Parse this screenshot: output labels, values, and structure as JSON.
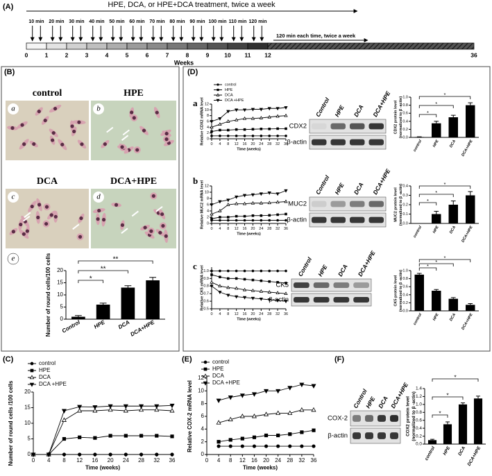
{
  "panel_a": {
    "label": "(A)",
    "treatment": "HPE, DCA, or HPE+DCA treatment, twice a week",
    "durations": [
      "10 min",
      "20 min",
      "30 min",
      "40 min",
      "50 min",
      "60 min",
      "70 min",
      "80 min",
      "90 min",
      "100 min",
      "110 min",
      "120 min"
    ],
    "tail": "120 min each time, twice a week",
    "weeks": [
      0,
      1,
      2,
      3,
      4,
      5,
      6,
      7,
      8,
      9,
      10,
      11,
      12,
      36
    ],
    "axis_label": "Weeks"
  },
  "panel_b": {
    "label": "(B)",
    "images": [
      {
        "letter": "a",
        "title": "control"
      },
      {
        "letter": "b",
        "title": "HPE"
      },
      {
        "letter": "c",
        "title": "DCA"
      },
      {
        "letter": "d",
        "title": "DCA+HPE"
      }
    ],
    "chart_letter": "e"
  },
  "panel_c": {
    "label": "(C)"
  },
  "panel_d": {
    "label": "(D)",
    "rows": [
      {
        "letter": "a",
        "blot": {
          "lanes": [
            "Control",
            "HPE",
            "DCA",
            "DCA+HPE"
          ],
          "proteins": [
            "CDX2",
            "β-actin"
          ]
        }
      },
      {
        "letter": "b",
        "blot": {
          "lanes": [
            "Control",
            "HPE",
            "DCA",
            "DCA+HPE"
          ],
          "proteins": [
            "MUC2",
            "β-actin"
          ]
        }
      },
      {
        "letter": "c",
        "blot": {
          "lanes": [
            "Control",
            "HPE",
            "DCA",
            "DCA+HPE"
          ],
          "proteins": [
            "CK5",
            "β-actin"
          ]
        }
      }
    ]
  },
  "panel_e": {
    "label": "(E)"
  },
  "panel_f": {
    "label": "(F)",
    "blot": {
      "lanes": [
        "Control",
        "HPE",
        "DCA",
        "DCA+HPE"
      ],
      "proteins": [
        "COX-2",
        "β-actin"
      ]
    }
  },
  "chart_data": [
    {
      "type": "bar",
      "ylabel": "Number of round cells/100 cells",
      "categories": [
        "Control",
        "HPE",
        "DCA",
        "DCA+HPE"
      ],
      "values": [
        1,
        6,
        13,
        16
      ],
      "errors": [
        0.5,
        0.6,
        0.8,
        1.2
      ],
      "color": "#000000",
      "ylim": [
        0,
        20
      ],
      "yticks": [
        0,
        5,
        10,
        15,
        20
      ],
      "significance": [
        {
          "pair": [
            "Control",
            "HPE"
          ],
          "label": "*"
        },
        {
          "pair": [
            "Control",
            "DCA"
          ],
          "label": "**"
        },
        {
          "pair": [
            "Control",
            "DCA+HPE"
          ],
          "label": "**"
        }
      ]
    },
    {
      "type": "line",
      "xlabel": "Time (weeks)",
      "ylabel": "Number of round cells /100 cells",
      "x": [
        0,
        4,
        8,
        12,
        16,
        20,
        24,
        28,
        32,
        36
      ],
      "xlim": [
        0,
        36
      ],
      "xticks": [
        0,
        4,
        8,
        12,
        16,
        20,
        24,
        28,
        32,
        36
      ],
      "ylim": [
        0,
        20
      ],
      "yticks": [
        0,
        5,
        10,
        15,
        20
      ],
      "series": [
        {
          "name": "control",
          "marker": "circle",
          "color": "#000000",
          "values": [
            0,
            0,
            0,
            0,
            0,
            0,
            0,
            0,
            0,
            0
          ]
        },
        {
          "name": "HPE",
          "marker": "square",
          "color": "#000000",
          "values": [
            0,
            0,
            5,
            5.5,
            5.3,
            6,
            6,
            6,
            6,
            5.8
          ]
        },
        {
          "name": "DCA",
          "marker": "triangle",
          "color": "#000000",
          "values": [
            0,
            0,
            11,
            14,
            14,
            14.3,
            14,
            14.3,
            14.3,
            14
          ]
        },
        {
          "name": "DCA +HPE",
          "marker": "triangle-down",
          "color": "#000000",
          "values": [
            0,
            0,
            14,
            15.3,
            15.2,
            15.5,
            15.5,
            15.5,
            15.5,
            15.7
          ]
        }
      ]
    },
    {
      "type": "line",
      "xlabel": "Time (weeks)",
      "ylabel": "Relative CDX2 mRNA level",
      "x": [
        0,
        4,
        8,
        12,
        16,
        20,
        24,
        28,
        32,
        36
      ],
      "xlim": [
        0,
        36
      ],
      "xticks": [
        0,
        4,
        8,
        12,
        16,
        20,
        24,
        28,
        32,
        36
      ],
      "ylim": [
        0,
        12
      ],
      "yticks": [
        0,
        2,
        4,
        6,
        8,
        10,
        12
      ],
      "series": [
        {
          "name": "control",
          "marker": "circle",
          "color": "#000000",
          "values": [
            1,
            1,
            1,
            1,
            1,
            1,
            1,
            1,
            1,
            1
          ]
        },
        {
          "name": "HPE",
          "marker": "square",
          "color": "#000000",
          "values": [
            2.5,
            3,
            3,
            3.2,
            3.2,
            3.3,
            3.4,
            3.4,
            3.5,
            3.5
          ]
        },
        {
          "name": "DCA",
          "marker": "triangle",
          "color": "#000000",
          "values": [
            4,
            5,
            6,
            6.5,
            7,
            7,
            7.2,
            7.5,
            7.8,
            8
          ]
        },
        {
          "name": "DCA +HPE",
          "marker": "triangle-down",
          "color": "#000000",
          "values": [
            6,
            7,
            9.5,
            10,
            10,
            10.2,
            10.2,
            10.5,
            10.5,
            10.8
          ]
        }
      ]
    },
    {
      "type": "bar",
      "ylabel": [
        "CDX2 protein  level",
        "(normalized to β -actin)"
      ],
      "categories": [
        "control",
        "HPE",
        "DCA",
        "DCA+HPE"
      ],
      "values": [
        0.01,
        0.35,
        0.5,
        0.8
      ],
      "errors": [
        0.005,
        0.05,
        0.05,
        0.06
      ],
      "color": "#000000",
      "ylim": [
        0,
        1
      ],
      "yticks": [
        {
          "value": 0,
          "label": "0.0"
        },
        0.2,
        0.4,
        0.6,
        0.8,
        {
          "value": 1,
          "label": "1.0"
        }
      ],
      "significance": [
        {
          "pair": [
            "control",
            "HPE"
          ],
          "label": "*"
        },
        {
          "pair": [
            "control",
            "DCA"
          ],
          "label": "*"
        },
        {
          "pair": [
            "control",
            "DCA+HPE"
          ],
          "label": "*"
        }
      ]
    },
    {
      "type": "line",
      "xlabel": "Time (weeks)",
      "ylabel": "Relative MUC2 mRNA level",
      "x": [
        0,
        4,
        8,
        12,
        16,
        20,
        24,
        28,
        32,
        36
      ],
      "xlim": [
        0,
        36
      ],
      "xticks": [
        0,
        4,
        8,
        12,
        16,
        20,
        24,
        28,
        32,
        36
      ],
      "ylim": [
        0,
        12
      ],
      "yticks": [
        0,
        2,
        4,
        6,
        8,
        10,
        12
      ],
      "series": [
        {
          "marker": "circle",
          "color": "#000000",
          "values": [
            1,
            1,
            1,
            1,
            1,
            1,
            1,
            1,
            1,
            1
          ]
        },
        {
          "marker": "square",
          "color": "#000000",
          "values": [
            1.5,
            2,
            2,
            2.3,
            2.3,
            2.5,
            2.5,
            2.6,
            2.8,
            3
          ]
        },
        {
          "marker": "triangle",
          "color": "#000000",
          "values": [
            3,
            4,
            6,
            6.3,
            6.3,
            6.5,
            6.5,
            6.6,
            6.8,
            7
          ]
        },
        {
          "marker": "triangle-down",
          "color": "#000000",
          "values": [
            6,
            7,
            7.5,
            8.5,
            9,
            9.2,
            9.5,
            9.8,
            9.5,
            10.5
          ]
        }
      ]
    },
    {
      "type": "bar",
      "ylabel": [
        "MUC2 protein level",
        "(normalized to β -actin)"
      ],
      "categories": [
        "control",
        "HPE",
        "DCA",
        "DCA+HPE"
      ],
      "values": [
        0,
        0.1,
        0.2,
        0.3
      ],
      "errors": [
        0,
        0.03,
        0.04,
        0.04
      ],
      "color": "#000000",
      "ylim": [
        0,
        0.4
      ],
      "yticks": [
        {
          "value": 0,
          "label": "0.0"
        },
        0.1,
        0.2,
        0.3,
        0.4
      ],
      "significance": [
        {
          "pair": [
            "control",
            "HPE"
          ],
          "label": "*"
        },
        {
          "pair": [
            "control",
            "DCA"
          ],
          "label": "*"
        },
        {
          "pair": [
            "control",
            "DCA+HPE"
          ],
          "label": "*"
        }
      ]
    },
    {
      "type": "line",
      "xlabel": "Time (weeks)",
      "ylabel": "Relative CK5 mRNA level",
      "x": [
        0,
        4,
        8,
        12,
        16,
        20,
        24,
        28,
        32,
        36
      ],
      "xlim": [
        0,
        36
      ],
      "xticks": [
        0,
        4,
        8,
        12,
        16,
        20,
        24,
        28,
        32,
        36
      ],
      "ylim": [
        0.5,
        1.05
      ],
      "yticks": [
        0.5,
        0.6,
        0.7,
        0.8,
        0.9,
        {
          "value": 1,
          "label": "1.0"
        }
      ],
      "series": [
        {
          "marker": "circle",
          "color": "#000000",
          "values": [
            1,
            1,
            1,
            1,
            1,
            1,
            1,
            1,
            1,
            1
          ]
        },
        {
          "marker": "square",
          "color": "#000000",
          "values": [
            0.95,
            0.92,
            0.9,
            0.9,
            0.89,
            0.88,
            0.87,
            0.86,
            0.85,
            0.84
          ]
        },
        {
          "marker": "triangle",
          "color": "#000000",
          "values": [
            0.85,
            0.8,
            0.78,
            0.77,
            0.75,
            0.74,
            0.73,
            0.72,
            0.71,
            0.7
          ]
        },
        {
          "marker": "triangle-down",
          "color": "#000000",
          "values": [
            0.8,
            0.72,
            0.68,
            0.66,
            0.65,
            0.64,
            0.63,
            0.62,
            0.61,
            0.6
          ]
        }
      ]
    },
    {
      "type": "bar",
      "ylabel": [
        "CK5 protein level",
        "(normalized to β -actin)"
      ],
      "categories": [
        "control",
        "HPE",
        "DCA",
        "DCA+HPE"
      ],
      "values": [
        0.9,
        0.5,
        0.3,
        0.15
      ],
      "errors": [
        0.03,
        0.03,
        0.03,
        0.03
      ],
      "color": "#000000",
      "ylim": [
        0,
        1
      ],
      "yticks": [
        {
          "value": 0,
          "label": "0.0"
        },
        0.2,
        0.4,
        0.6,
        0.8,
        {
          "value": 1,
          "label": "1.0"
        }
      ],
      "significance": [
        {
          "pair": [
            "control",
            "HPE"
          ],
          "label": "*"
        },
        {
          "pair": [
            "control",
            "DCA"
          ],
          "label": "*"
        },
        {
          "pair": [
            "control",
            "DCA+HPE"
          ],
          "label": "*"
        }
      ]
    },
    {
      "type": "line",
      "xlabel": "Time (weeks)",
      "ylabel": "Relative COX-2 mRNA level",
      "x": [
        4,
        8,
        12,
        16,
        20,
        24,
        28,
        32,
        36
      ],
      "xlim": [
        0,
        36
      ],
      "xticks": [
        0,
        4,
        8,
        12,
        16,
        20,
        24,
        28,
        32,
        36
      ],
      "ylim": [
        0,
        12
      ],
      "yticks": [
        0,
        2,
        4,
        6,
        8,
        10,
        12
      ],
      "series": [
        {
          "name": "control",
          "marker": "circle",
          "color": "#000000",
          "values": [
            1.3,
            1.3,
            1.3,
            1.3,
            1.3,
            1.3,
            1.3,
            1.3,
            1.3
          ]
        },
        {
          "name": "HPE",
          "marker": "square",
          "color": "#000000",
          "values": [
            2,
            2.3,
            2.5,
            2.7,
            3,
            3,
            3.2,
            3.5,
            3.8
          ]
        },
        {
          "name": "DCA",
          "marker": "triangle",
          "color": "#000000",
          "values": [
            5,
            5.5,
            6,
            6,
            6.3,
            6.5,
            6.5,
            7,
            7
          ]
        },
        {
          "name": "DCA +HPE",
          "marker": "triangle-down",
          "color": "#000000",
          "values": [
            8.5,
            9,
            9.3,
            9.5,
            10,
            10,
            10.5,
            11,
            10.8
          ]
        }
      ]
    },
    {
      "type": "bar",
      "ylabel": [
        "COX2 protein level",
        "(normalized to β -actin)"
      ],
      "categories": [
        "control",
        "HPE",
        "DCA",
        "DCA+HPE"
      ],
      "values": [
        0.1,
        0.5,
        1,
        1.15
      ],
      "errors": [
        0.02,
        0.06,
        0.04,
        0.06
      ],
      "color": "#000000",
      "ylim": [
        0,
        1.4
      ],
      "yticks": [
        {
          "value": 0,
          "label": "0.0"
        },
        0.2,
        0.4,
        0.6,
        0.8,
        {
          "value": 1,
          "label": "1.0"
        },
        1.2,
        1.4
      ],
      "significance": [
        {
          "pair": [
            "control",
            "HPE"
          ],
          "label": "*"
        },
        {
          "pair": [
            "control",
            "DCA"
          ],
          "label": "*"
        },
        {
          "pair": [
            "control",
            "DCA+HPE"
          ],
          "label": "*"
        }
      ]
    }
  ]
}
